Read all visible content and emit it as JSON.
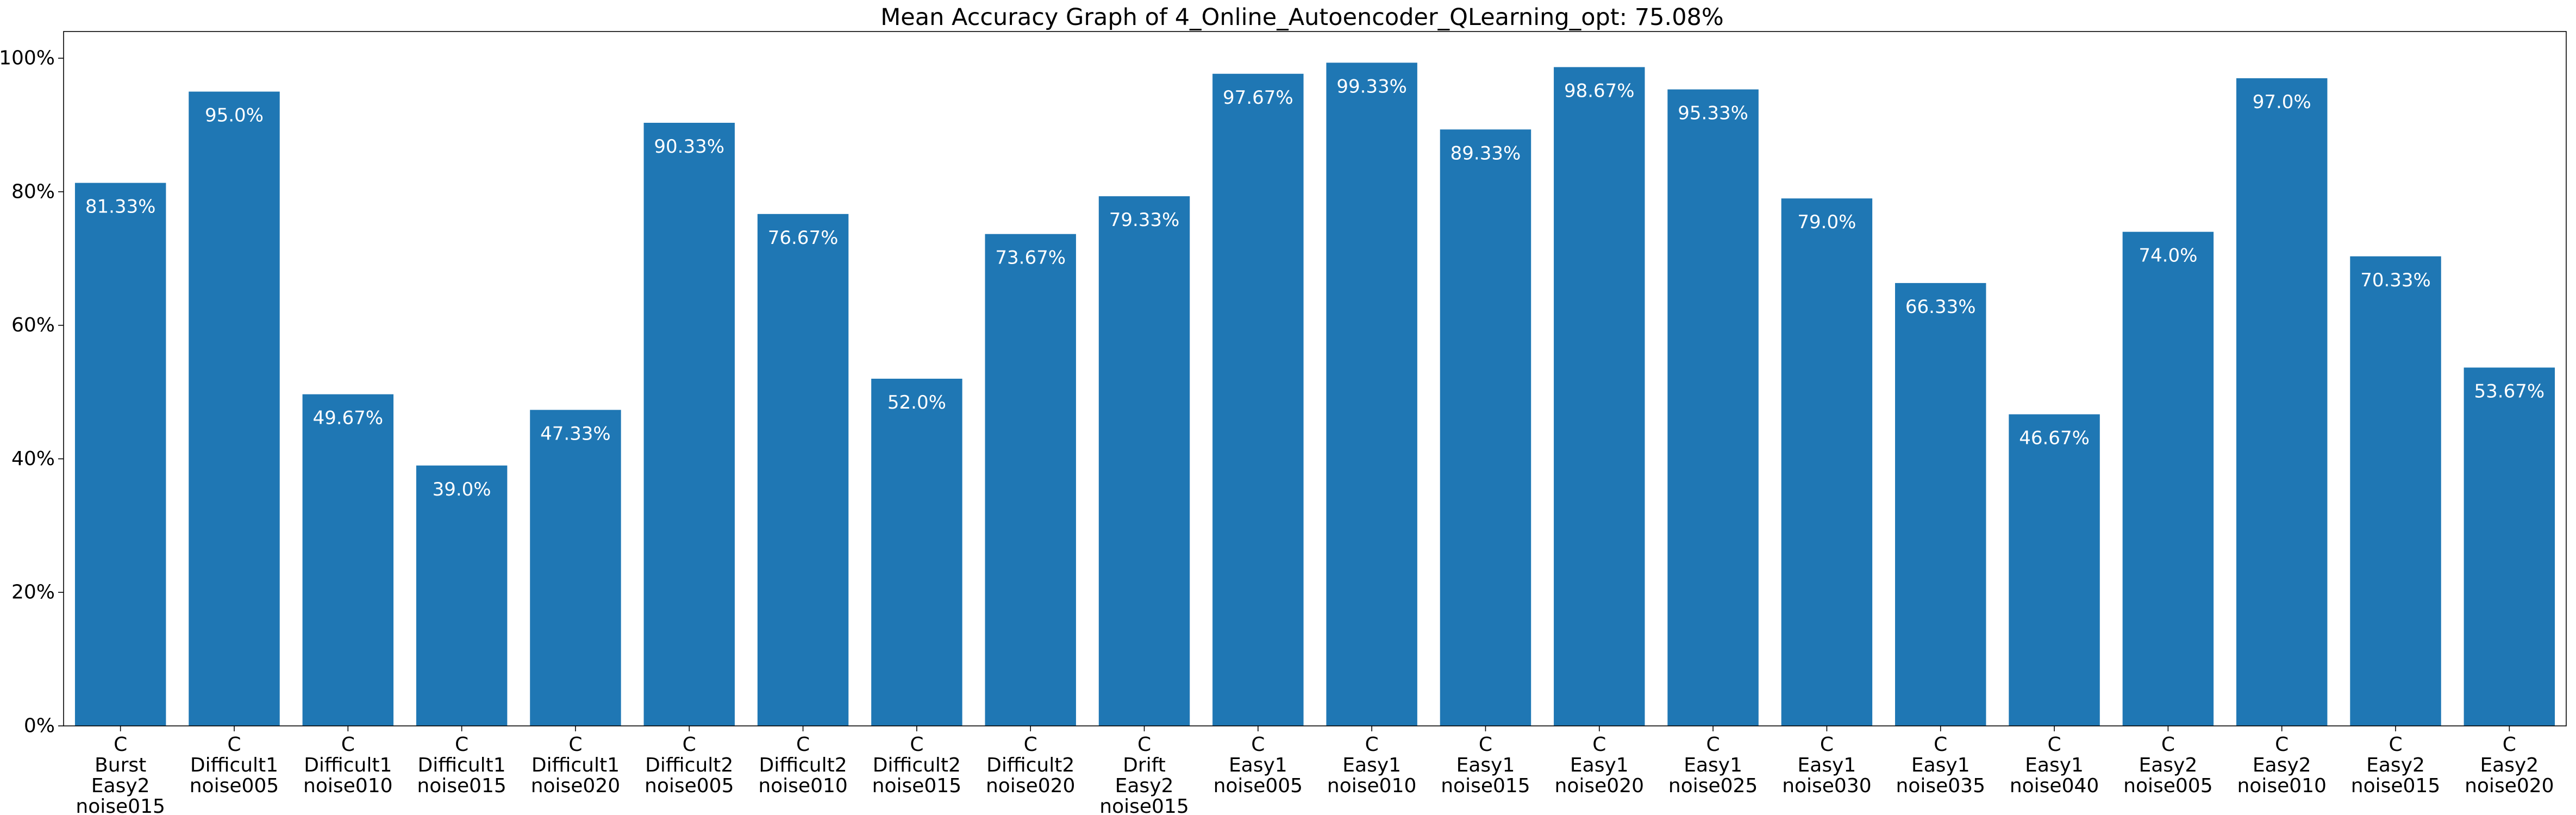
{
  "chart_data": {
    "type": "bar",
    "title": "Mean Accuracy Graph of 4_Online_Autoencoder_QLearning_opt: 75.08%",
    "xlabel": "",
    "ylabel": "",
    "ylim": [
      0,
      104
    ],
    "y_ticks": [
      0,
      20,
      40,
      60,
      80,
      100
    ],
    "y_tick_labels": [
      "0%",
      "20%",
      "40%",
      "60%",
      "80%",
      "100%"
    ],
    "grid": false,
    "bar_color": "#1f77b4",
    "categories": [
      [
        "C",
        "Burst",
        "Easy2",
        "noise015"
      ],
      [
        "C",
        "Difficult1",
        "noise005"
      ],
      [
        "C",
        "Difficult1",
        "noise010"
      ],
      [
        "C",
        "Difficult1",
        "noise015"
      ],
      [
        "C",
        "Difficult1",
        "noise020"
      ],
      [
        "C",
        "Difficult2",
        "noise005"
      ],
      [
        "C",
        "Difficult2",
        "noise010"
      ],
      [
        "C",
        "Difficult2",
        "noise015"
      ],
      [
        "C",
        "Difficult2",
        "noise020"
      ],
      [
        "C",
        "Drift",
        "Easy2",
        "noise015"
      ],
      [
        "C",
        "Easy1",
        "noise005"
      ],
      [
        "C",
        "Easy1",
        "noise010"
      ],
      [
        "C",
        "Easy1",
        "noise015"
      ],
      [
        "C",
        "Easy1",
        "noise020"
      ],
      [
        "C",
        "Easy1",
        "noise025"
      ],
      [
        "C",
        "Easy1",
        "noise030"
      ],
      [
        "C",
        "Easy1",
        "noise035"
      ],
      [
        "C",
        "Easy1",
        "noise040"
      ],
      [
        "C",
        "Easy2",
        "noise005"
      ],
      [
        "C",
        "Easy2",
        "noise010"
      ],
      [
        "C",
        "Easy2",
        "noise015"
      ],
      [
        "C",
        "Easy2",
        "noise020"
      ]
    ],
    "values": [
      81.33,
      95.0,
      49.67,
      39.0,
      47.33,
      90.33,
      76.67,
      52.0,
      73.67,
      79.33,
      97.67,
      99.33,
      89.33,
      98.67,
      95.33,
      79.0,
      66.33,
      46.67,
      74.0,
      97.0,
      70.33,
      53.67
    ],
    "value_labels": [
      "81.33%",
      "95.0%",
      "49.67%",
      "39.0%",
      "47.33%",
      "90.33%",
      "76.67%",
      "52.0%",
      "73.67%",
      "79.33%",
      "97.67%",
      "99.33%",
      "89.33%",
      "98.67%",
      "95.33%",
      "79.0%",
      "66.33%",
      "46.67%",
      "74.0%",
      "97.0%",
      "70.33%",
      "53.67%"
    ]
  }
}
